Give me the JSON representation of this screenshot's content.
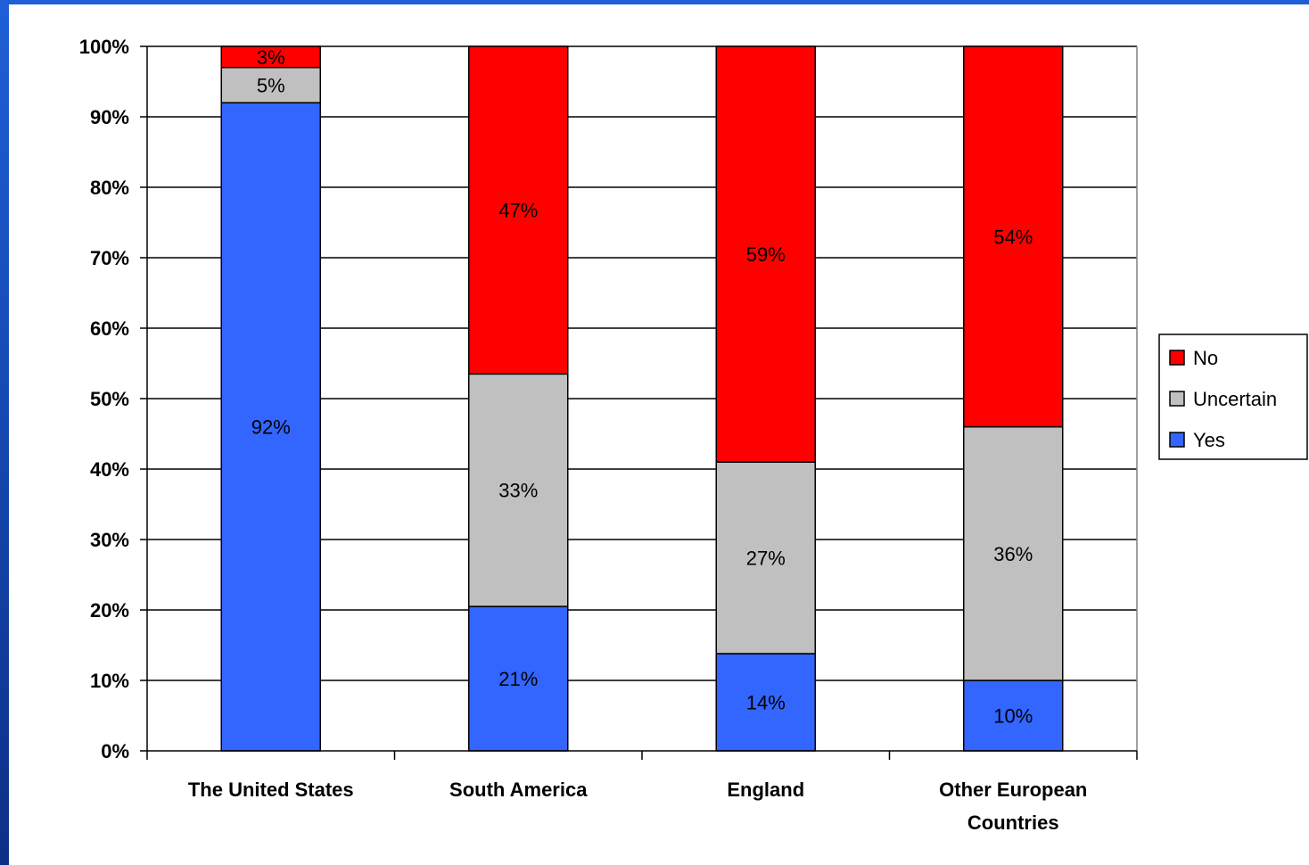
{
  "chart_data": {
    "type": "bar",
    "stacked": true,
    "percent": true,
    "categories": [
      [
        "The United States"
      ],
      [
        "South America"
      ],
      [
        "England"
      ],
      [
        "Other European",
        "Countries"
      ]
    ],
    "series": [
      {
        "name": "Yes",
        "color": "#3366ff",
        "values": [
          92,
          20.5,
          13.8,
          10
        ]
      },
      {
        "name": "Uncertain",
        "color": "#c0c0c0",
        "values": [
          5,
          33,
          27.2,
          36
        ]
      },
      {
        "name": "No",
        "color": "#ff0000",
        "values": [
          3,
          46.5,
          59,
          54
        ]
      }
    ],
    "data_labels": [
      [
        "92%",
        "5%",
        "3%"
      ],
      [
        "21%",
        "33%",
        "47%"
      ],
      [
        "14%",
        "27%",
        "59%"
      ],
      [
        "10%",
        "36%",
        "54%"
      ]
    ],
    "yticks": [
      "0%",
      "10%",
      "20%",
      "30%",
      "40%",
      "50%",
      "60%",
      "70%",
      "80%",
      "90%",
      "100%"
    ],
    "ylim": [
      0,
      100
    ],
    "grid": true,
    "legend": {
      "position": "right",
      "entries": [
        "No",
        "Uncertain",
        "Yes"
      ]
    }
  }
}
